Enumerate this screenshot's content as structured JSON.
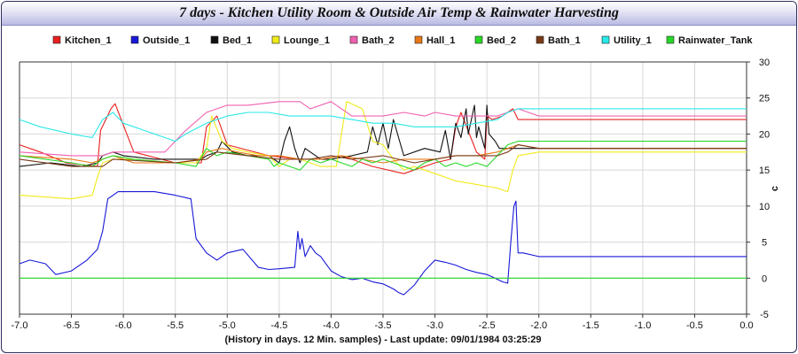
{
  "title": "7 days - Kitchen Utility Room & Outside Air Temp & Rainwater Harvesting",
  "chart_data": {
    "type": "line",
    "title": "7 days - Kitchen Utility Room & Outside Air Temp & Rainwater Harvesting",
    "xlabel": "(History in days. 12 Min. samples) - Last update: 09/01/1984 03:25:29",
    "ylabel": "c",
    "xlim": [
      -7.0,
      0.0
    ],
    "ylim": [
      -5,
      30
    ],
    "x_ticks": [
      "-7.0",
      "-6.5",
      "-6.0",
      "-5.5",
      "-5.0",
      "-4.5",
      "-4.0",
      "-3.5",
      "-3.0",
      "-2.5",
      "-2.0",
      "-1.5",
      "-1.0",
      "-0.5",
      "0.0"
    ],
    "y_ticks": [
      "-5",
      "0",
      "5",
      "10",
      "15",
      "20",
      "25",
      "30"
    ],
    "grid": true,
    "legend_position": "top",
    "series": [
      {
        "name": "Kitchen_1",
        "color": "#e8201e",
        "x": [
          -7.0,
          -6.8,
          -6.55,
          -6.25,
          -6.22,
          -6.12,
          -6.08,
          -5.9,
          -5.5,
          -5.25,
          -5.2,
          -5.1,
          -5.0,
          -4.6,
          -4.3,
          -4.1,
          -3.9,
          -3.6,
          -3.3,
          -3.0,
          -2.85,
          -2.8,
          -2.75,
          -2.6,
          -2.52,
          -2.5,
          -2.45,
          -2.35,
          -2.3,
          -2.25,
          -2.2,
          -2.0,
          0.0
        ],
        "values": [
          18.5,
          17.5,
          16.0,
          15.5,
          20.5,
          23.5,
          24.2,
          17.5,
          16.0,
          16.0,
          21.0,
          22.5,
          18.5,
          17.0,
          16.5,
          16.5,
          17.0,
          15.5,
          14.5,
          16.0,
          16.5,
          21.0,
          23.0,
          17.5,
          16.5,
          22.5,
          22.0,
          22.5,
          23.0,
          23.5,
          22.0,
          22.0,
          22.0
        ]
      },
      {
        "name": "Outside_1",
        "color": "#1818d8",
        "x": [
          -7.0,
          -6.9,
          -6.75,
          -6.65,
          -6.5,
          -6.35,
          -6.25,
          -6.2,
          -6.15,
          -6.05,
          -5.9,
          -5.7,
          -5.5,
          -5.35,
          -5.3,
          -5.2,
          -5.1,
          -5.0,
          -4.85,
          -4.7,
          -4.6,
          -4.5,
          -4.35,
          -4.32,
          -4.3,
          -4.28,
          -4.25,
          -4.2,
          -4.15,
          -4.1,
          -4.0,
          -3.9,
          -3.8,
          -3.7,
          -3.6,
          -3.5,
          -3.4,
          -3.35,
          -3.3,
          -3.2,
          -3.1,
          -3.0,
          -2.9,
          -2.8,
          -2.7,
          -2.6,
          -2.5,
          -2.45,
          -2.35,
          -2.3,
          -2.27,
          -2.24,
          -2.22,
          -2.2,
          -2.15,
          -2.0,
          0.0
        ],
        "values": [
          2.0,
          2.5,
          2.0,
          0.5,
          1.0,
          2.5,
          4.0,
          6.5,
          11.0,
          12.0,
          12.0,
          12.0,
          11.5,
          11.0,
          5.5,
          3.5,
          2.5,
          3.5,
          4.0,
          1.5,
          1.2,
          1.3,
          1.5,
          6.5,
          4.0,
          5.5,
          3.0,
          4.5,
          3.5,
          3.0,
          1.0,
          0.2,
          -0.2,
          0.0,
          -0.5,
          -0.8,
          -1.5,
          -2.0,
          -2.3,
          -1.0,
          1.0,
          2.5,
          2.2,
          1.8,
          1.2,
          0.8,
          0.5,
          0.2,
          -0.5,
          -0.7,
          5.0,
          10.0,
          10.7,
          3.5,
          3.5,
          3.0,
          3.0
        ]
      },
      {
        "name": "Bed_1",
        "color": "#111111",
        "x": [
          -7.0,
          -6.7,
          -6.4,
          -6.25,
          -6.2,
          -6.1,
          -6.0,
          -5.7,
          -5.5,
          -5.3,
          -5.25,
          -5.2,
          -5.1,
          -5.05,
          -4.95,
          -4.8,
          -4.6,
          -4.5,
          -4.45,
          -4.4,
          -4.35,
          -4.3,
          -4.25,
          -4.1,
          -4.0,
          -3.8,
          -3.65,
          -3.6,
          -3.55,
          -3.5,
          -3.45,
          -3.4,
          -3.3,
          -3.1,
          -2.95,
          -2.9,
          -2.85,
          -2.8,
          -2.75,
          -2.7,
          -2.68,
          -2.62,
          -2.6,
          -2.58,
          -2.52,
          -2.5,
          -2.48,
          -2.42,
          -2.38,
          -2.3,
          -2.2,
          -2.0,
          0.0
        ],
        "values": [
          15.5,
          16.0,
          15.5,
          16.0,
          17.0,
          17.5,
          17.0,
          16.5,
          16.5,
          16.5,
          16.5,
          17.0,
          17.5,
          19.0,
          17.5,
          17.0,
          17.0,
          16.0,
          19.0,
          21.0,
          18.0,
          16.0,
          18.0,
          16.5,
          16.5,
          17.0,
          17.5,
          21.0,
          18.5,
          21.5,
          18.0,
          22.0,
          17.0,
          18.0,
          17.5,
          20.5,
          16.5,
          21.5,
          19.5,
          23.5,
          20.0,
          24.0,
          19.5,
          21.0,
          18.0,
          24.0,
          20.0,
          19.0,
          18.0,
          18.0,
          18.0,
          18.0,
          18.0
        ]
      },
      {
        "name": "Lounge_1",
        "color": "#f0ea18",
        "x": [
          -7.0,
          -6.5,
          -6.3,
          -6.25,
          -6.2,
          -6.1,
          -5.9,
          -5.5,
          -5.3,
          -5.2,
          -5.15,
          -5.05,
          -4.95,
          -4.8,
          -4.6,
          -4.5,
          -4.4,
          -4.3,
          -4.2,
          -4.1,
          -3.95,
          -3.9,
          -3.85,
          -3.7,
          -3.6,
          -3.5,
          -3.4,
          -3.3,
          -3.2,
          -3.0,
          -2.8,
          -2.6,
          -2.4,
          -2.3,
          -2.25,
          -2.2,
          -2.0,
          0.0
        ],
        "values": [
          11.5,
          11.0,
          11.5,
          14.0,
          16.0,
          16.5,
          16.5,
          16.0,
          16.0,
          18.0,
          22.5,
          19.0,
          18.0,
          17.5,
          17.0,
          15.5,
          16.5,
          16.5,
          16.0,
          15.5,
          15.5,
          20.0,
          24.5,
          23.5,
          19.0,
          18.5,
          16.5,
          15.0,
          15.5,
          14.5,
          13.5,
          13.0,
          12.5,
          12.0,
          15.0,
          17.0,
          17.5,
          17.5
        ]
      },
      {
        "name": "Bath_2",
        "color": "#f060b0",
        "x": [
          -7.0,
          -6.5,
          -6.2,
          -6.1,
          -5.6,
          -5.4,
          -5.2,
          -5.0,
          -4.8,
          -4.5,
          -4.3,
          -4.2,
          -4.0,
          -3.8,
          -3.5,
          -3.3,
          -3.1,
          -3.0,
          -2.8,
          -2.6,
          -2.4,
          -2.2,
          -2.0,
          0.0
        ],
        "values": [
          17.5,
          17.0,
          17.0,
          17.5,
          17.5,
          20.5,
          23.0,
          24.0,
          24.0,
          24.5,
          24.5,
          23.5,
          24.5,
          22.5,
          22.5,
          23.0,
          22.5,
          23.0,
          22.5,
          22.5,
          22.5,
          23.5,
          22.5,
          22.5
        ]
      },
      {
        "name": "Hall_1",
        "color": "#e87818",
        "x": [
          -7.0,
          -6.5,
          -6.3,
          -6.2,
          -6.1,
          -5.9,
          -5.5,
          -5.25,
          -5.2,
          -5.05,
          -4.9,
          -4.7,
          -4.5,
          -4.3,
          -4.1,
          -3.9,
          -3.5,
          -3.3,
          -3.0,
          -2.8,
          -2.6,
          -2.4,
          -2.3,
          -2.2,
          -2.0,
          0.0
        ],
        "values": [
          17.0,
          16.5,
          16.0,
          16.5,
          17.0,
          16.0,
          16.0,
          16.5,
          17.5,
          18.0,
          17.5,
          17.0,
          17.0,
          16.5,
          16.5,
          17.0,
          16.0,
          16.5,
          16.5,
          17.0,
          17.0,
          17.5,
          18.0,
          18.5,
          18.0,
          18.0
        ]
      },
      {
        "name": "Bed_2",
        "color": "#28d828",
        "x": [
          -7.0,
          -6.5,
          -6.3,
          -6.2,
          -6.1,
          -5.9,
          -5.5,
          -5.3,
          -5.2,
          -5.1,
          -5.0,
          -4.8,
          -4.6,
          -4.55,
          -4.5,
          -4.3,
          -4.2,
          -4.1,
          -4.0,
          -3.9,
          -3.8,
          -3.7,
          -3.6,
          -3.5,
          -3.4,
          -3.3,
          -3.2,
          -3.1,
          -3.0,
          -2.9,
          -2.8,
          -2.7,
          -2.6,
          -2.5,
          -2.4,
          -2.3,
          -2.2,
          -2.0,
          0.0
        ],
        "values": [
          17.0,
          16.0,
          15.5,
          16.5,
          17.0,
          16.5,
          16.0,
          15.5,
          18.0,
          17.0,
          17.5,
          17.0,
          16.5,
          15.5,
          16.0,
          15.0,
          16.5,
          16.0,
          16.5,
          16.0,
          15.5,
          16.5,
          16.0,
          16.5,
          16.0,
          15.5,
          15.0,
          16.0,
          16.5,
          15.5,
          16.0,
          15.5,
          16.0,
          15.5,
          17.0,
          18.5,
          19.0,
          19.0,
          19.0
        ]
      },
      {
        "name": "Bath_1",
        "color": "#7a3a18",
        "x": [
          -7.0,
          -6.5,
          -6.2,
          -6.1,
          -5.5,
          -5.2,
          -5.1,
          -4.8,
          -4.5,
          -4.2,
          -4.0,
          -3.8,
          -3.5,
          -3.2,
          -3.0,
          -2.8,
          -2.6,
          -2.4,
          -2.3,
          -2.2,
          -2.0,
          0.0
        ],
        "values": [
          16.5,
          15.5,
          15.5,
          16.5,
          16.0,
          16.5,
          17.5,
          17.0,
          16.5,
          16.5,
          17.0,
          16.5,
          17.0,
          16.0,
          16.5,
          17.0,
          17.0,
          17.0,
          17.5,
          18.5,
          18.0,
          18.0
        ]
      },
      {
        "name": "Utility_1",
        "color": "#28e8e8",
        "x": [
          -7.0,
          -6.8,
          -6.5,
          -6.3,
          -6.2,
          -6.1,
          -6.0,
          -5.8,
          -5.6,
          -5.5,
          -5.4,
          -5.2,
          -5.0,
          -4.8,
          -4.6,
          -4.4,
          -4.2,
          -4.0,
          -3.8,
          -3.6,
          -3.4,
          -3.2,
          -3.0,
          -2.8,
          -2.6,
          -2.4,
          -2.3,
          -2.2,
          -2.0,
          0.0
        ],
        "values": [
          22.0,
          21.0,
          20.0,
          19.5,
          22.0,
          23.0,
          21.5,
          20.5,
          19.5,
          19.0,
          20.0,
          21.5,
          22.5,
          23.0,
          23.0,
          22.5,
          22.5,
          22.5,
          22.0,
          21.5,
          21.5,
          21.0,
          21.0,
          21.0,
          21.5,
          22.0,
          23.0,
          23.5,
          23.5,
          23.5
        ]
      },
      {
        "name": "Rainwater_Tank",
        "color": "#28d828",
        "x": [
          -7.0,
          0.0
        ],
        "values": [
          0.0,
          0.0
        ]
      }
    ]
  }
}
